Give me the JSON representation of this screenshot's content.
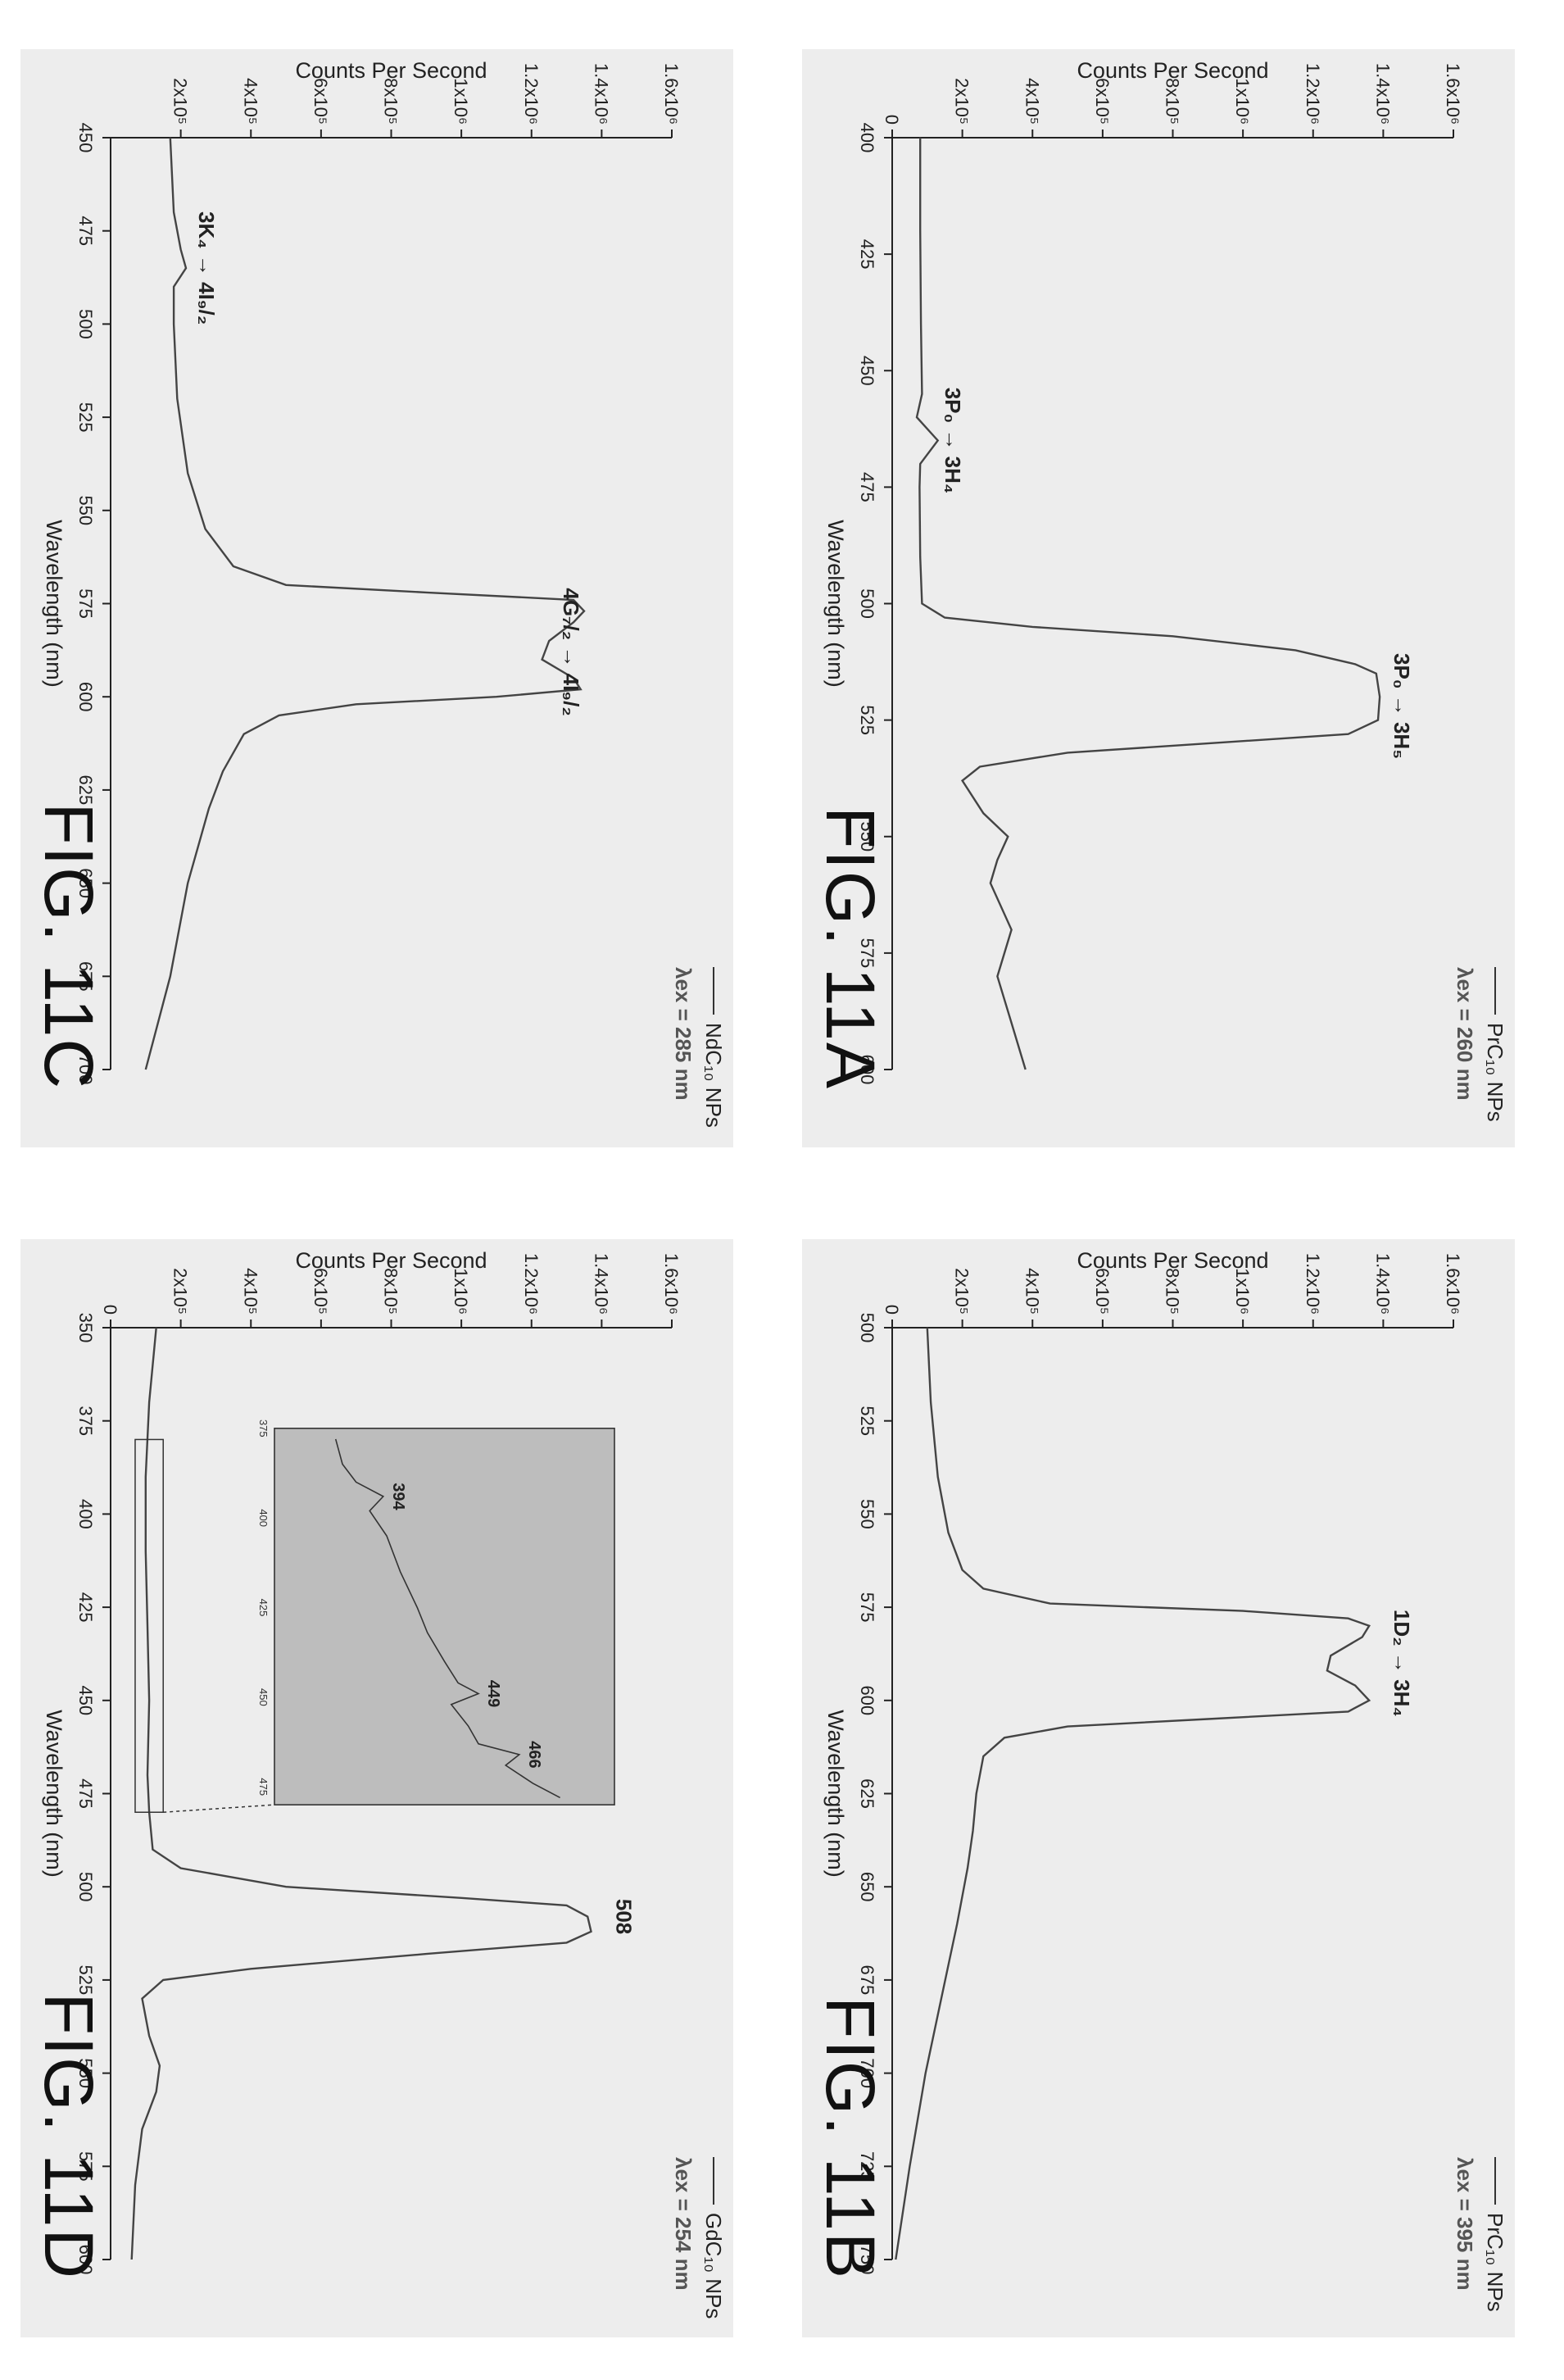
{
  "chart_data": [
    {
      "id": "A",
      "figure_label": "FIG. 11A",
      "type": "line",
      "xlabel": "Wavelength (nm)",
      "ylabel": "Counts Per Second",
      "xlim": [
        400,
        600
      ],
      "ylim": [
        0,
        1600000
      ],
      "xticks": [
        "400",
        "425",
        "450",
        "475",
        "500",
        "525",
        "550",
        "575",
        "600"
      ],
      "yticks": [
        "0",
        "2x10⁵",
        "4x10⁵",
        "6x10⁵",
        "8x10⁵",
        "1x10⁶",
        "1.2x10⁶",
        "1.4x10⁶",
        "1.6x10⁶"
      ],
      "legend": {
        "series": "PrC₁₀ NPs",
        "excitation": "λex = 260 nm"
      },
      "annotations": [
        {
          "text": "3P₀ → 3H₄",
          "x": 465,
          "y": 110000
        },
        {
          "text": "3P₀ → 3H₅",
          "x": 522,
          "y": 1390000
        }
      ],
      "series": [
        {
          "x": [
            400,
            420,
            440,
            455,
            460,
            465,
            470,
            475,
            490,
            500,
            503,
            505,
            507,
            510,
            513,
            515,
            520,
            525,
            528,
            530,
            532,
            535,
            538,
            545,
            550,
            555,
            560,
            570,
            575,
            580,
            590,
            600
          ],
          "y": [
            80000,
            80000,
            82000,
            85000,
            70000,
            130000,
            80000,
            78000,
            80000,
            85000,
            150000,
            400000,
            800000,
            1150000,
            1320000,
            1380000,
            1390000,
            1385000,
            1300000,
            900000,
            500000,
            250000,
            200000,
            260000,
            330000,
            300000,
            280000,
            340000,
            320000,
            300000,
            340000,
            380000
          ]
        }
      ]
    },
    {
      "id": "B",
      "figure_label": "FIG. 11B",
      "type": "line",
      "xlabel": "Wavelength (nm)",
      "ylabel": "Counts Per Second",
      "xlim": [
        500,
        750
      ],
      "ylim": [
        0,
        1600000
      ],
      "xticks": [
        "500",
        "525",
        "550",
        "575",
        "600",
        "625",
        "650",
        "675",
        "700",
        "725",
        "750"
      ],
      "yticks": [
        "0",
        "2x10⁵",
        "4x10⁵",
        "6x10⁵",
        "8x10⁵",
        "1x10⁶",
        "1.2x10⁶",
        "1.4x10⁶",
        "1.6x10⁶"
      ],
      "legend": {
        "series": "PrC₁₀ NPs",
        "excitation": "λex = 395 nm"
      },
      "annotations": [
        {
          "text": "1D₂ → 3H₄",
          "x": 590,
          "y": 1390000
        }
      ],
      "series": [
        {
          "x": [
            500,
            520,
            540,
            555,
            565,
            570,
            574,
            576,
            578,
            580,
            583,
            588,
            592,
            596,
            600,
            603,
            605,
            607,
            610,
            615,
            620,
            625,
            635,
            645,
            660,
            680,
            700,
            725,
            750
          ],
          "y": [
            100000,
            110000,
            130000,
            160000,
            200000,
            260000,
            450000,
            1000000,
            1300000,
            1360000,
            1340000,
            1250000,
            1240000,
            1320000,
            1360000,
            1300000,
            900000,
            500000,
            320000,
            260000,
            250000,
            240000,
            230000,
            215000,
            185000,
            140000,
            95000,
            50000,
            10000
          ]
        }
      ]
    },
    {
      "id": "C",
      "figure_label": "FIG. 11C",
      "type": "line",
      "xlabel": "Wavelength (nm)",
      "ylabel": "Counts Per Second",
      "xlim": [
        450,
        700
      ],
      "ylim": [
        0,
        1600000
      ],
      "xticks": [
        "450",
        "475",
        "500",
        "525",
        "550",
        "575",
        "600",
        "625",
        "650",
        "675",
        "700"
      ],
      "yticks": [
        "2x10⁵",
        "4x10⁵",
        "6x10⁵",
        "8x10⁵",
        "1x10⁶",
        "1.2x10⁶",
        "1.4x10⁶",
        "1.6x10⁶"
      ],
      "legend": {
        "series": "NdC₁₀ NPs",
        "excitation": "λex = 285 nm"
      },
      "annotations": [
        {
          "text": "3K₄ → 4I₉/₂",
          "x": 485,
          "y": 210000
        },
        {
          "text": "4G₇/₂ → 4I₉/₂",
          "x": 588,
          "y": 1250000
        }
      ],
      "series": [
        {
          "x": [
            450,
            470,
            480,
            485,
            490,
            500,
            520,
            540,
            555,
            565,
            570,
            572,
            574,
            577,
            580,
            585,
            590,
            595,
            598,
            600,
            602,
            605,
            610,
            620,
            630,
            650,
            675,
            700
          ],
          "y": [
            170000,
            180000,
            200000,
            215000,
            180000,
            180000,
            190000,
            220000,
            270000,
            350000,
            500000,
            900000,
            1320000,
            1350000,
            1320000,
            1250000,
            1230000,
            1320000,
            1340000,
            1100000,
            700000,
            480000,
            380000,
            320000,
            280000,
            220000,
            170000,
            100000
          ]
        }
      ]
    },
    {
      "id": "D",
      "figure_label": "FIG. 11D",
      "type": "line",
      "xlabel": "Wavelength (nm)",
      "ylabel": "Counts Per Second",
      "xlim": [
        350,
        600
      ],
      "ylim": [
        0,
        1600000
      ],
      "xticks": [
        "350",
        "375",
        "400",
        "425",
        "450",
        "475",
        "500",
        "525",
        "550",
        "575",
        "600"
      ],
      "yticks": [
        "0",
        "2x10⁵",
        "4x10⁵",
        "6x10⁵",
        "8x10⁵",
        "1x10⁶",
        "1.2x10⁶",
        "1.4x10⁶",
        "1.6x10⁶"
      ],
      "legend": {
        "series": "GdC₁₀ NPs",
        "excitation": "λex = 254 nm"
      },
      "annotations": [
        {
          "text": "508",
          "x": 508,
          "y": 1400000
        }
      ],
      "series": [
        {
          "x": [
            350,
            370,
            390,
            410,
            430,
            450,
            470,
            480,
            490,
            495,
            500,
            503,
            505,
            508,
            512,
            515,
            518,
            522,
            525,
            530,
            540,
            548,
            555,
            565,
            580,
            600
          ],
          "y": [
            130000,
            110000,
            100000,
            100000,
            105000,
            110000,
            105000,
            110000,
            120000,
            200000,
            500000,
            1000000,
            1300000,
            1360000,
            1370000,
            1300000,
            900000,
            400000,
            150000,
            90000,
            110000,
            140000,
            130000,
            90000,
            70000,
            60000
          ]
        }
      ],
      "inset": {
        "xticks": [
          "375",
          "400",
          "425",
          "450",
          "475"
        ],
        "xlim": [
          375,
          480
        ],
        "annotations": [
          {
            "text": "394",
            "x": 394
          },
          {
            "text": "449",
            "x": 449
          },
          {
            "text": "466",
            "x": 466
          }
        ],
        "series": {
          "x": [
            378,
            385,
            390,
            394,
            398,
            405,
            415,
            425,
            432,
            440,
            446,
            449,
            452,
            458,
            463,
            466,
            469,
            474,
            478
          ],
          "y": [
            0.18,
            0.2,
            0.24,
            0.32,
            0.28,
            0.33,
            0.37,
            0.42,
            0.45,
            0.5,
            0.54,
            0.6,
            0.52,
            0.57,
            0.6,
            0.72,
            0.68,
            0.76,
            0.84
          ]
        }
      }
    }
  ]
}
